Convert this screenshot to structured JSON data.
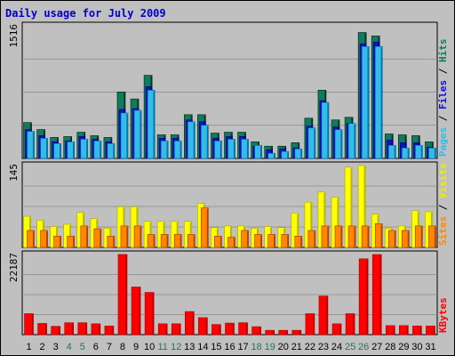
{
  "chart_data": {
    "type": "bar",
    "title": "Daily usage for July 2009",
    "categories": [
      "1",
      "2",
      "3",
      "4",
      "5",
      "6",
      "7",
      "8",
      "9",
      "10",
      "11",
      "12",
      "13",
      "14",
      "15",
      "16",
      "17",
      "18",
      "19",
      "20",
      "21",
      "22",
      "23",
      "24",
      "25",
      "26",
      "27",
      "28",
      "29",
      "30",
      "31"
    ],
    "weekend_days": [
      "4",
      "5",
      "11",
      "12",
      "18",
      "19",
      "25",
      "26"
    ],
    "panels": [
      {
        "id": "hits",
        "ymax_label": "1516",
        "ylim": [
          0,
          1516
        ],
        "side_label": [
          "Pages",
          "Files",
          "Hits"
        ],
        "series": [
          {
            "name": "Hits",
            "color": "#0f7b5f",
            "values": [
              410,
              330,
              240,
              250,
              300,
              260,
              240,
              760,
              680,
              950,
              270,
              270,
              500,
              500,
              290,
              300,
              300,
              190,
              140,
              140,
              180,
              460,
              780,
              440,
              470,
              1440,
              1400,
              280,
              270,
              260,
              190
            ]
          },
          {
            "name": "Files",
            "color": "#1010c8",
            "values": [
              330,
              260,
              190,
              200,
              250,
              220,
              190,
              560,
              570,
              820,
              230,
              230,
              440,
              420,
              230,
              250,
              250,
              140,
              100,
              110,
              120,
              370,
              660,
              360,
              400,
              1310,
              1330,
              210,
              180,
              180,
              130
            ]
          },
          {
            "name": "Pages",
            "color": "#33bbee",
            "values": [
              330,
              250,
              190,
              210,
              240,
              220,
              190,
              540,
              570,
              800,
              220,
              220,
              440,
              400,
              220,
              240,
              240,
              170,
              80,
              100,
              130,
              370,
              660,
              350,
              420,
              1300,
              1300,
              170,
              140,
              170,
              140
            ]
          }
        ]
      },
      {
        "id": "visits",
        "ymax_label": "145",
        "ylim": [
          0,
          145
        ],
        "side_label": [
          "Sites",
          "Visits"
        ],
        "series": [
          {
            "name": "Visits",
            "color": "#ffff00",
            "values": [
              55,
              48,
              37,
              41,
              62,
              51,
              34,
              72,
              72,
              46,
              46,
              46,
              46,
              78,
              35,
              38,
              38,
              34,
              37,
              35,
              61,
              80,
              98,
              89,
              142,
              145,
              59,
              34,
              38,
              65,
              63
            ]
          },
          {
            "name": "Sites",
            "color": "#ff8800",
            "values": [
              30,
              30,
              20,
              20,
              38,
              33,
              20,
              38,
              38,
              23,
              23,
              23,
              23,
              70,
              20,
              18,
              30,
              23,
              23,
              23,
              20,
              30,
              38,
              38,
              38,
              38,
              42,
              30,
              30,
              38,
              38
            ]
          }
        ]
      },
      {
        "id": "kbytes",
        "ymax_label": "22187",
        "ylim": [
          0,
          22187
        ],
        "side_label": [
          "KBytes"
        ],
        "series": [
          {
            "name": "KBytes",
            "color": "#ff0000",
            "values": [
              5800,
              3100,
              2300,
              3300,
              3300,
              3000,
              2400,
              22200,
              13200,
              11700,
              3000,
              3000,
              6400,
              4700,
              2800,
              3200,
              3300,
              2200,
              1200,
              1200,
              1200,
              5800,
              10700,
              3000,
              5800,
              21000,
              22187,
              2500,
              2500,
              2400,
              2400
            ]
          }
        ]
      }
    ]
  }
}
